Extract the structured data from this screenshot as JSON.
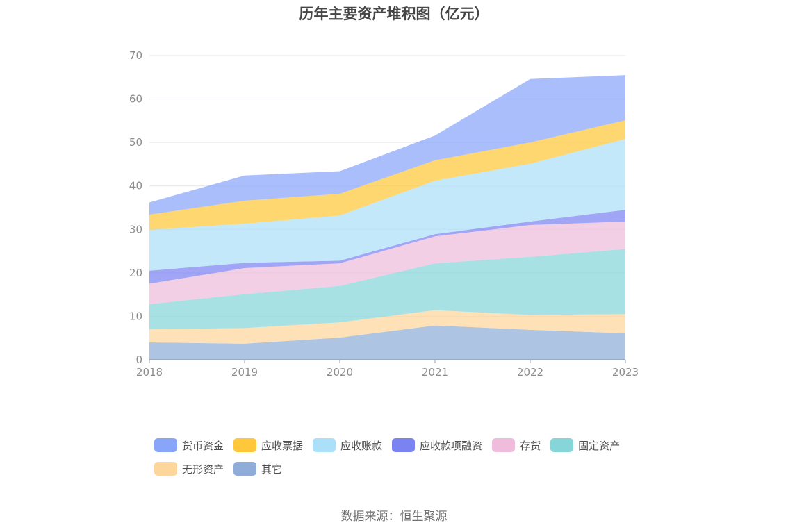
{
  "chart_data": {
    "type": "area",
    "stacked": true,
    "title": "历年主要资产堆积图（亿元）",
    "xlabel": "",
    "ylabel": "",
    "categories": [
      "2018",
      "2019",
      "2020",
      "2021",
      "2022",
      "2023"
    ],
    "ylim": [
      0,
      70
    ],
    "yticks": [
      0,
      10,
      20,
      30,
      40,
      50,
      60,
      70
    ],
    "grid": true,
    "legend_position": "bottom",
    "series": [
      {
        "name": "其它",
        "color": "#8fadd8",
        "values": [
          4.0,
          3.7,
          5.1,
          7.9,
          6.9,
          6.1
        ]
      },
      {
        "name": "无形资产",
        "color": "#fdd69b",
        "values": [
          3.0,
          3.6,
          3.5,
          3.5,
          3.4,
          4.4
        ]
      },
      {
        "name": "固定资产",
        "color": "#86d5d9",
        "values": [
          5.8,
          7.8,
          8.4,
          10.8,
          13.4,
          15.0
        ]
      },
      {
        "name": "存货",
        "color": "#efbcdc",
        "values": [
          4.7,
          6.0,
          5.2,
          6.2,
          7.3,
          6.3
        ]
      },
      {
        "name": "应收款项融资",
        "color": "#7b82f2",
        "values": [
          3.0,
          1.2,
          0.6,
          0.5,
          0.8,
          2.7
        ]
      },
      {
        "name": "应收账款",
        "color": "#acdff8",
        "values": [
          9.4,
          9.0,
          10.4,
          12.3,
          13.3,
          16.3
        ]
      },
      {
        "name": "应收票据",
        "color": "#fec83a",
        "values": [
          3.5,
          5.3,
          5.0,
          4.7,
          4.9,
          4.3
        ]
      },
      {
        "name": "货币资金",
        "color": "#88a5fa",
        "values": [
          2.8,
          5.8,
          5.2,
          5.7,
          14.6,
          10.4
        ]
      }
    ],
    "legend_order": [
      "货币资金",
      "应收票据",
      "应收账款",
      "应收款项融资",
      "存货",
      "固定资产",
      "无形资产",
      "其它"
    ]
  },
  "source_note": "数据来源：恒生聚源"
}
